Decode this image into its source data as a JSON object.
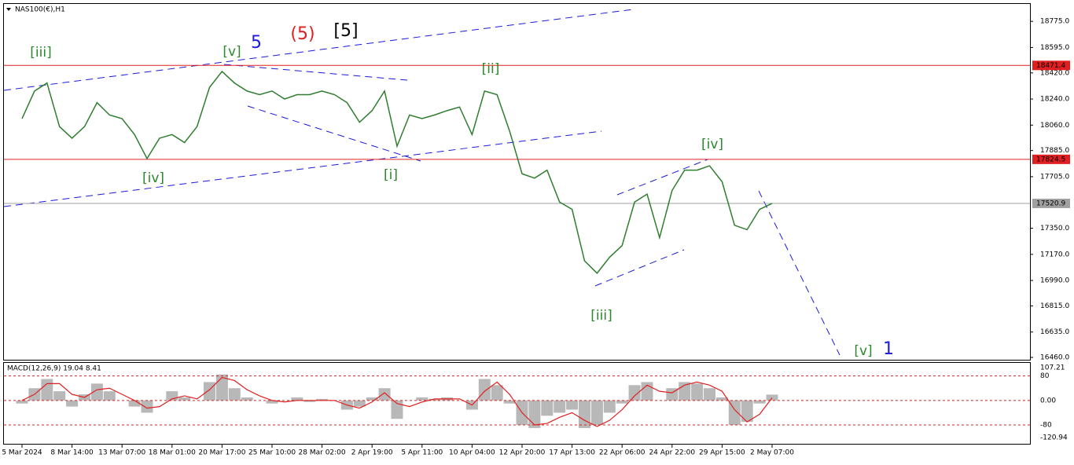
{
  "chart_data": [
    {
      "type": "line",
      "title": "NAS100(€),H1",
      "color": "#2f7d2f",
      "categories": [
        "5 Mar 2024",
        null,
        null,
        null,
        "8 Mar 14:00",
        null,
        null,
        null,
        "13 Mar 07:00",
        null,
        null,
        null,
        "18 Mar 01:00",
        null,
        null,
        null,
        "20 Mar 17:00",
        null,
        null,
        null,
        "25 Mar 10:00",
        null,
        null,
        null,
        "28 Mar 02:00",
        null,
        null,
        null,
        "2 Apr 19:00",
        null,
        null,
        null,
        "5 Apr 11:00",
        null,
        null,
        null,
        "10 Apr 04:00",
        null,
        null,
        null,
        "12 Apr 20:00",
        null,
        null,
        null,
        "17 Apr 13:00",
        null,
        null,
        null,
        "22 Apr 06:00",
        null,
        null,
        null,
        "24 Apr 22:00",
        null,
        null,
        null,
        "29 Apr 15:00",
        null,
        null,
        null,
        "2 May 07:00"
      ],
      "values": [
        18105,
        18295,
        18350,
        18050,
        17970,
        18050,
        18215,
        18130,
        18105,
        17995,
        17830,
        17970,
        17995,
        17940,
        18050,
        18320,
        18430,
        18350,
        18295,
        18270,
        18295,
        18240,
        18270,
        18270,
        18295,
        18270,
        18215,
        18080,
        18160,
        18295,
        17915,
        18130,
        18105,
        18130,
        18160,
        18185,
        17995,
        18295,
        18270,
        18020,
        17725,
        17695,
        17750,
        17530,
        17480,
        17125,
        17040,
        17150,
        17230,
        17530,
        17585,
        17285,
        17610,
        17750,
        17750,
        17780,
        17670,
        17370,
        17340,
        17480,
        17520.9
      ],
      "ylim": [
        16444,
        18895
      ],
      "yticks": [
        {
          "value": 18775,
          "label": "18775.0"
        },
        {
          "value": 18595,
          "label": "18595.0"
        },
        {
          "value": 18420,
          "label": "18420.0"
        },
        {
          "value": 18240,
          "label": "18240.0"
        },
        {
          "value": 18060,
          "label": "18060.0"
        },
        {
          "value": 17885,
          "label": "17885.0"
        },
        {
          "value": 17705,
          "label": "17705.0"
        },
        {
          "value": 17350,
          "label": "17350.0"
        },
        {
          "value": 17170,
          "label": "17170.0"
        },
        {
          "value": 16990,
          "label": "16990.0"
        },
        {
          "value": 16815,
          "label": "16815.0"
        },
        {
          "value": 16635,
          "label": "16635.0"
        },
        {
          "value": 16460,
          "label": "16460.0"
        }
      ],
      "levels": [
        {
          "value": 18471.4,
          "color": "#e02020"
        },
        {
          "value": 17824.5,
          "color": "#e02020"
        },
        {
          "value": 17520.9,
          "color": "#a0a0a0"
        }
      ],
      "annotations": [
        {
          "text": "[iii]",
          "color": "#2a8a2a"
        },
        {
          "text": "[v]",
          "color": "#2a8a2a"
        },
        {
          "text": "5",
          "color": "#1a1adc"
        },
        {
          "text": "(5)",
          "color": "#e02020"
        },
        {
          "text": "[5]",
          "color": "#000000"
        },
        {
          "text": "[ii]",
          "color": "#2a8a2a"
        },
        {
          "text": "[iv]",
          "color": "#2a8a2a"
        },
        {
          "text": "[i]",
          "color": "#2a8a2a"
        },
        {
          "text": "[iv]",
          "color": "#2a8a2a"
        },
        {
          "text": "[iii]",
          "color": "#2a8a2a"
        },
        {
          "text": "[v]",
          "color": "#2a8a2a"
        },
        {
          "text": "1",
          "color": "#1a1adc"
        }
      ]
    },
    {
      "type": "bar",
      "title": "MACD(12,26,9) 19.04 8.41",
      "color": "#b8b8b8",
      "signal_color": "#e02020",
      "values": [
        -10,
        40,
        70,
        30,
        -20,
        20,
        55,
        30,
        0,
        -20,
        -40,
        0,
        30,
        10,
        0,
        60,
        85,
        40,
        10,
        0,
        -10,
        0,
        10,
        -5,
        5,
        0,
        -30,
        -20,
        10,
        40,
        -60,
        0,
        10,
        5,
        10,
        0,
        -30,
        70,
        50,
        -10,
        -80,
        -90,
        -50,
        -40,
        -30,
        -90,
        -80,
        -40,
        -10,
        50,
        60,
        0,
        40,
        60,
        55,
        40,
        10,
        -80,
        -70,
        -10,
        19.04
      ],
      "signal": [
        0,
        20,
        55,
        55,
        20,
        10,
        35,
        40,
        20,
        0,
        -25,
        -20,
        5,
        15,
        5,
        35,
        75,
        65,
        35,
        15,
        0,
        -5,
        0,
        0,
        0,
        0,
        -15,
        -25,
        -5,
        25,
        -10,
        -20,
        -5,
        5,
        5,
        5,
        -15,
        30,
        60,
        20,
        -40,
        -80,
        -75,
        -55,
        -40,
        -65,
        -85,
        -65,
        -30,
        15,
        50,
        30,
        25,
        50,
        60,
        50,
        30,
        -30,
        -70,
        -45,
        8.41
      ],
      "ylim": [
        -120.94,
        107.21
      ],
      "yticks": [
        107.21,
        80,
        {
          "value": 0,
          "label": "0.00"
        },
        -80,
        -120.94
      ]
    }
  ]
}
